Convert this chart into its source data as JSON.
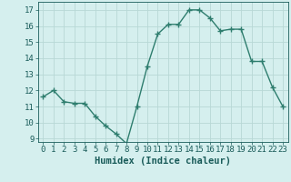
{
  "x": [
    0,
    1,
    2,
    3,
    4,
    5,
    6,
    7,
    8,
    9,
    10,
    11,
    12,
    13,
    14,
    15,
    16,
    17,
    18,
    19,
    20,
    21,
    22,
    23
  ],
  "y": [
    11.6,
    12.0,
    11.3,
    11.2,
    11.2,
    10.4,
    9.8,
    9.3,
    8.7,
    11.0,
    13.5,
    15.5,
    16.1,
    16.1,
    17.0,
    17.0,
    16.5,
    15.7,
    15.8,
    15.8,
    13.8,
    13.8,
    12.2,
    11.0
  ],
  "line_color": "#2e7d6e",
  "marker": "+",
  "marker_size": 4,
  "bg_color": "#d5efee",
  "grid_color": "#b8d8d6",
  "axis_label_color": "#1a5c5a",
  "tick_color": "#1a5c5a",
  "xlabel": "Humidex (Indice chaleur)",
  "xlim": [
    -0.5,
    23.5
  ],
  "ylim": [
    8.8,
    17.5
  ],
  "yticks": [
    9,
    10,
    11,
    12,
    13,
    14,
    15,
    16,
    17
  ],
  "xticks": [
    0,
    1,
    2,
    3,
    4,
    5,
    6,
    7,
    8,
    9,
    10,
    11,
    12,
    13,
    14,
    15,
    16,
    17,
    18,
    19,
    20,
    21,
    22,
    23
  ],
  "xlabel_fontsize": 7.5,
  "tick_fontsize": 6.5,
  "linewidth": 1.0,
  "marker_linewidth": 1.0
}
